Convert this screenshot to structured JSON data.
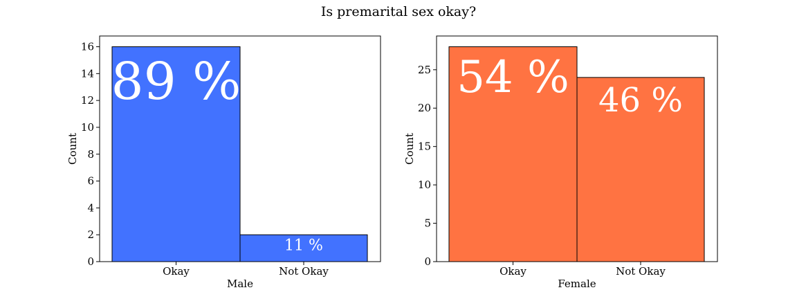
{
  "suptitle": "Is premarital sex okay?",
  "chart_data": [
    {
      "type": "bar",
      "categories": [
        "Okay",
        "Not Okay"
      ],
      "values": [
        16,
        2
      ],
      "percent_labels": [
        "89 %",
        "11 %"
      ],
      "xlabel": "Male",
      "ylabel": "Count",
      "ylim": [
        0,
        16.8
      ],
      "yticks": [
        0,
        2,
        4,
        6,
        8,
        10,
        12,
        14,
        16
      ],
      "color": "#4272ff",
      "grid": false
    },
    {
      "type": "bar",
      "categories": [
        "Okay",
        "Not Okay"
      ],
      "values": [
        28,
        24
      ],
      "percent_labels": [
        "54 %",
        "46 %"
      ],
      "xlabel": "Female",
      "ylabel": "Count",
      "ylim": [
        0,
        29.4
      ],
      "yticks": [
        0,
        5,
        10,
        15,
        20,
        25
      ],
      "color": "#ff7342",
      "grid": false
    }
  ]
}
